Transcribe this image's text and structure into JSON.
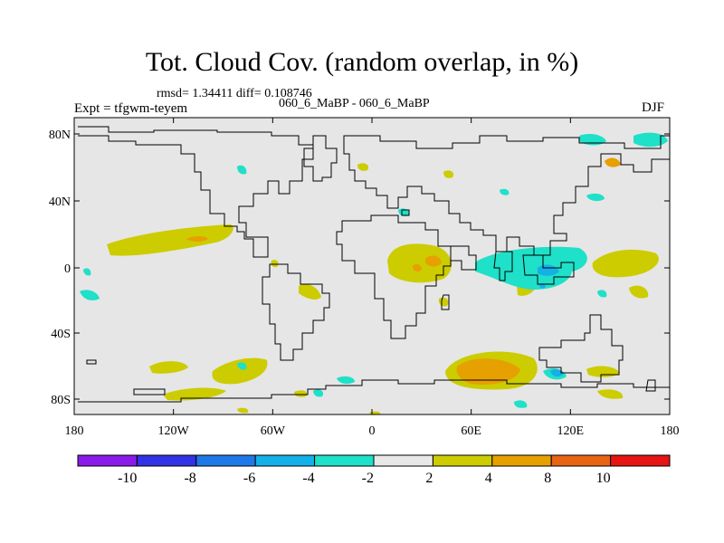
{
  "title": "Tot. Cloud Cov. (random overlap, in %)",
  "stats": "rmsd= 1.34411 diff= 0.108746",
  "subtitle": "060_6_MaBP - 060_6_MaBP",
  "experiment": "Expt = tfgwm-teyem",
  "season": "DJF",
  "lat_labels": [
    "80N",
    "40N",
    "0",
    "40S",
    "80S"
  ],
  "lon_labels": [
    "180",
    "120W",
    "60W",
    "0",
    "60E",
    "120E",
    "180"
  ],
  "colorbar": {
    "colors": [
      "#8a1be8",
      "#3232e6",
      "#1f78e8",
      "#14b0e8",
      "#1fe0c8",
      "#e8e8e8",
      "#cccc00",
      "#e6a000",
      "#e66414",
      "#e61414"
    ],
    "labels": [
      "-10",
      "-8",
      "-6",
      "-4",
      "-2",
      "2",
      "4",
      "8",
      "10"
    ]
  },
  "colors": {
    "ocean_fill": "#e6e6e6",
    "coast": "#000000"
  }
}
